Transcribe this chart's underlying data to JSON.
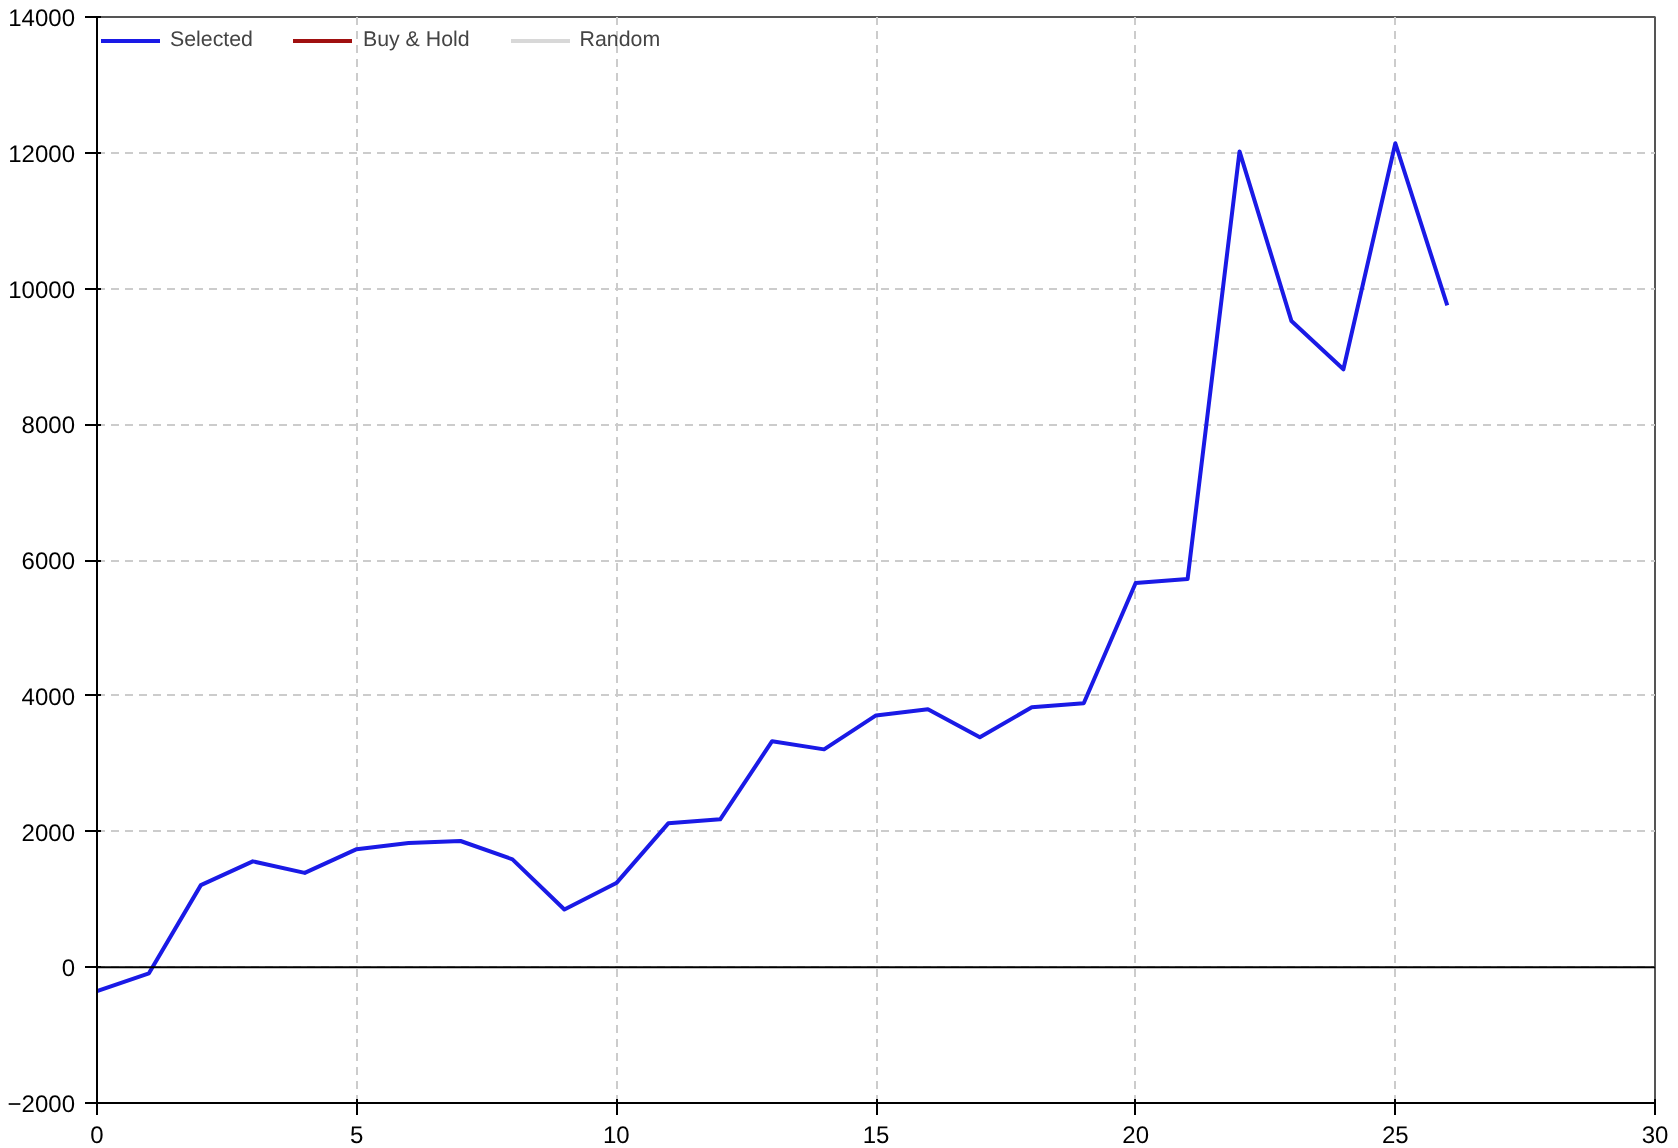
{
  "chart_data": {
    "type": "line",
    "x": [
      0,
      1,
      2,
      3,
      4,
      5,
      6,
      7,
      8,
      9,
      10,
      11,
      12,
      13,
      14,
      15,
      16,
      17,
      18,
      19,
      20,
      21,
      22,
      23,
      24,
      25,
      26
    ],
    "series": [
      {
        "name": "Selected",
        "color": "#1a1ae6",
        "values": [
          -350,
          -90,
          1210,
          1560,
          1390,
          1740,
          1830,
          1860,
          1590,
          850,
          1240,
          2120,
          2180,
          3330,
          3210,
          3710,
          3800,
          3390,
          3830,
          3890,
          5660,
          5720,
          12020,
          9520,
          8810,
          12140,
          9750
        ]
      },
      {
        "name": "Buy & Hold",
        "color": "#a01010",
        "values": [
          null,
          null,
          null,
          null,
          null,
          null,
          null,
          null,
          null,
          null,
          null,
          null,
          null,
          null,
          null,
          null,
          null,
          null,
          null,
          null,
          null,
          null,
          null,
          null,
          null,
          null,
          null
        ]
      },
      {
        "name": "Random",
        "color": "#d8d8d8",
        "values": [
          null,
          null,
          null,
          null,
          null,
          null,
          null,
          null,
          null,
          null,
          null,
          null,
          null,
          null,
          null,
          null,
          null,
          null,
          null,
          null,
          null,
          null,
          null,
          null,
          null,
          null,
          null
        ]
      }
    ],
    "xlim": [
      0,
      30
    ],
    "xticks": [
      0,
      5,
      10,
      15,
      20,
      25,
      30
    ],
    "ylim": [
      -2000,
      14000
    ],
    "yticks": [
      -2000,
      0,
      2000,
      4000,
      6000,
      8000,
      10000,
      12000,
      14000
    ],
    "ref_lines": [
      {
        "axis": "y",
        "value": 0,
        "color": "#000000"
      }
    ],
    "grid": true,
    "legend": "top left",
    "line_style": "solid"
  }
}
